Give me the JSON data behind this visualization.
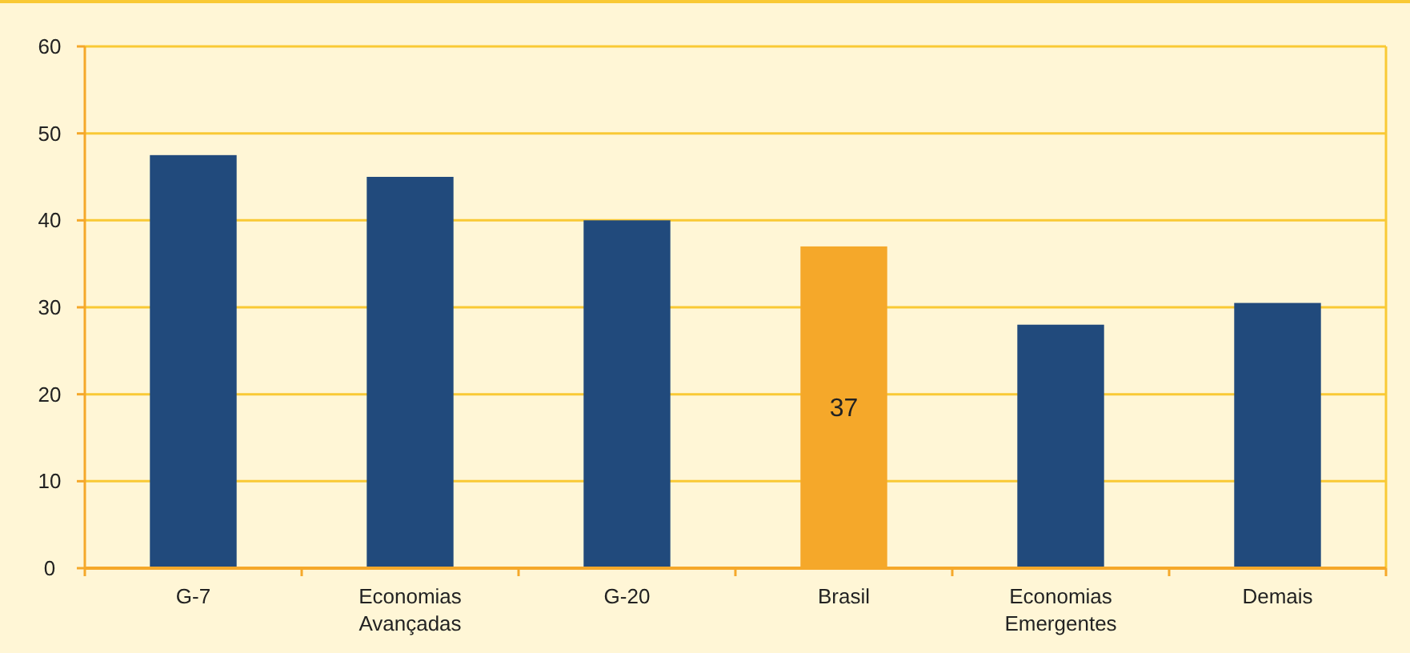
{
  "chart_data": {
    "type": "bar",
    "categories": [
      "G-7",
      "Economias Avançadas",
      "G-20",
      "Brasil",
      "Economias Emergentes",
      "Demais"
    ],
    "values": [
      47.5,
      45,
      40,
      37,
      28,
      30.5
    ],
    "colors": [
      "#214a7c",
      "#214a7c",
      "#214a7c",
      "#f5a82a",
      "#214a7c",
      "#214a7c"
    ],
    "value_labels": [
      null,
      null,
      null,
      "37",
      null,
      null
    ],
    "ylim": [
      0,
      60
    ],
    "yticks": [
      0,
      10,
      20,
      30,
      40,
      50,
      60
    ],
    "grid": "y"
  }
}
